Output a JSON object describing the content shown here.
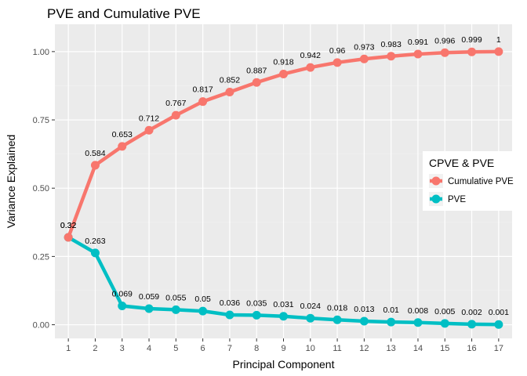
{
  "chart_data": {
    "type": "line",
    "title": "PVE and Cumulative PVE",
    "xlabel": "Principal Component",
    "ylabel": "Variance Explained",
    "x": [
      1,
      2,
      3,
      4,
      5,
      6,
      7,
      8,
      9,
      10,
      11,
      12,
      13,
      14,
      15,
      16,
      17
    ],
    "xlim": [
      0.5,
      17.5
    ],
    "ylim": [
      -0.05,
      1.1
    ],
    "yticks": [
      0.0,
      0.25,
      0.5,
      0.75,
      1.0
    ],
    "ytick_labels": [
      "0.00",
      "0.25",
      "0.50",
      "0.75",
      "1.00"
    ],
    "grid": true,
    "legend": {
      "title": "CPVE & PVE",
      "position": "right"
    },
    "series": [
      {
        "name": "Cumulative PVE",
        "color": "#F8766D",
        "values": [
          0.32,
          0.584,
          0.653,
          0.712,
          0.767,
          0.817,
          0.852,
          0.887,
          0.918,
          0.942,
          0.96,
          0.973,
          0.983,
          0.991,
          0.996,
          0.999,
          1.0
        ],
        "labels": [
          "0.32",
          "0.584",
          "0.653",
          "0.712",
          "0.767",
          "0.817",
          "0.852",
          "0.887",
          "0.918",
          "0.942",
          "0.96",
          "0.973",
          "0.983",
          "0.991",
          "0.996",
          "0.999",
          "1"
        ]
      },
      {
        "name": "PVE",
        "color": "#00BFC4",
        "values": [
          0.32,
          0.263,
          0.069,
          0.059,
          0.055,
          0.05,
          0.036,
          0.035,
          0.031,
          0.024,
          0.018,
          0.013,
          0.01,
          0.008,
          0.005,
          0.002,
          0.001
        ],
        "labels": [
          "0.32",
          "0.263",
          "0.069",
          "0.059",
          "0.055",
          "0.05",
          "0.036",
          "0.035",
          "0.031",
          "0.024",
          "0.018",
          "0.013",
          "0.01",
          "0.008",
          "0.005",
          "0.002",
          "0.001"
        ]
      }
    ],
    "colors": {
      "panel_background": "#EBEBEB",
      "grid_major": "#FFFFFF",
      "grid_minor": "#F2F2F2"
    }
  }
}
